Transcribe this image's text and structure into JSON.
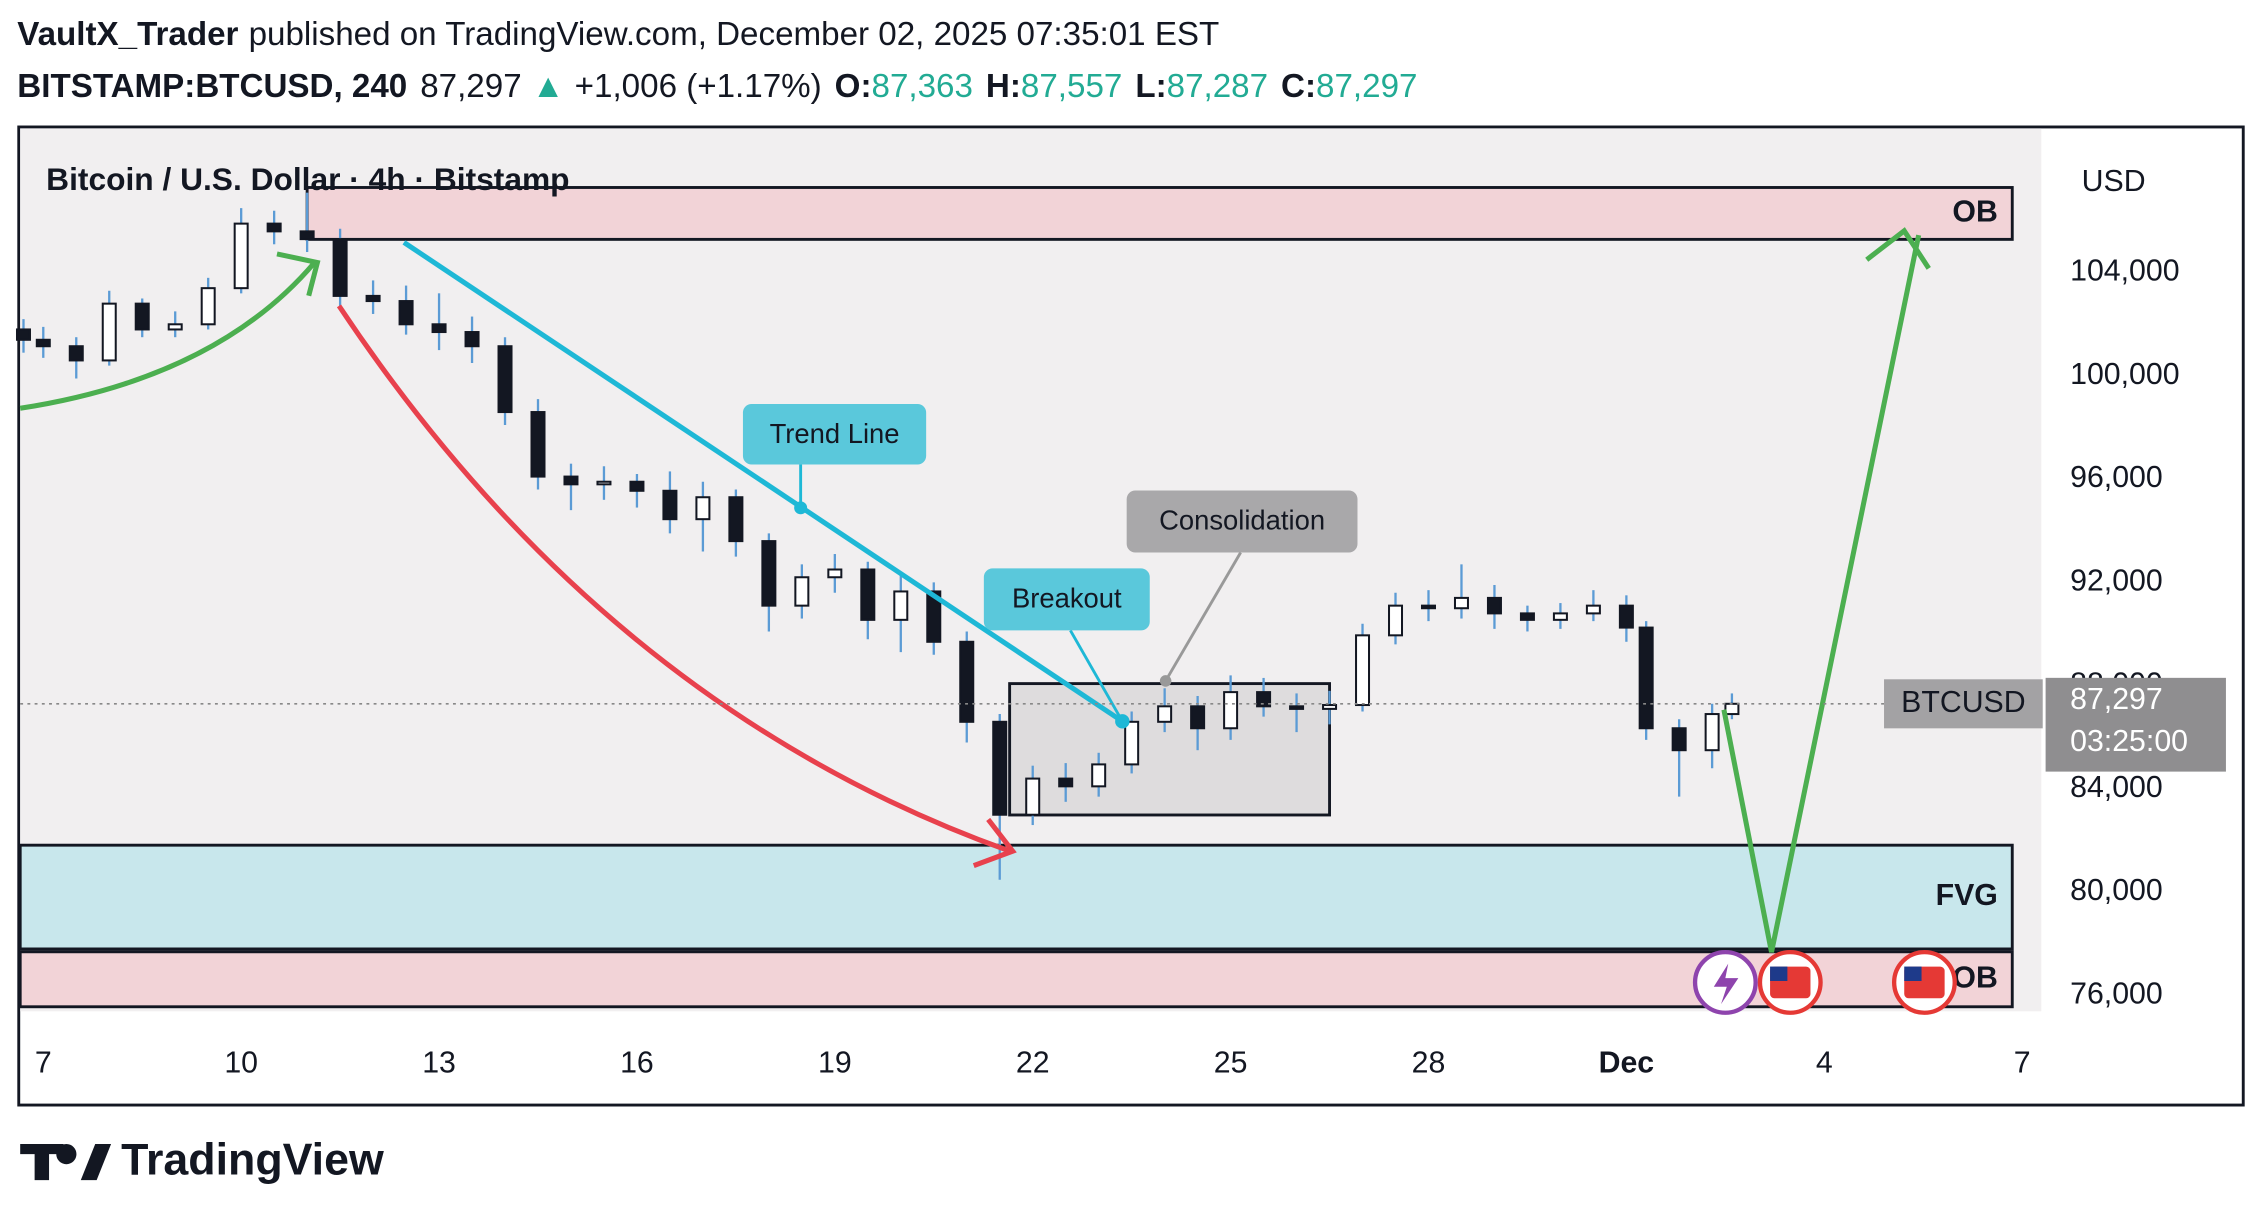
{
  "header": {
    "author": "VaultX_Trader",
    "published": "published on TradingView.com, December 02, 2025 07:35:01 EST",
    "symbol": "BITSTAMP:BTCUSD, 240",
    "last": "87,297",
    "arrow": "▲",
    "change": "+1,006 (+1.17%)",
    "open_key": "O:",
    "open": "87,363",
    "high_key": "H:",
    "high": "87,557",
    "low_key": "L:",
    "low": "87,287",
    "close_key": "C:",
    "close": "87,297"
  },
  "chart_data": {
    "type": "candlestick",
    "title": "Bitcoin / U.S. Dollar · 4h · Bitstamp",
    "currency": "USD",
    "xlim": [
      -0.35,
      30.29
    ],
    "xticks": [
      {
        "value": 0,
        "label": "7"
      },
      {
        "value": 3,
        "label": "10"
      },
      {
        "value": 6,
        "label": "13"
      },
      {
        "value": 9,
        "label": "16"
      },
      {
        "value": 12,
        "label": "19"
      },
      {
        "value": 15,
        "label": "22"
      },
      {
        "value": 18,
        "label": "25"
      },
      {
        "value": 21,
        "label": "28"
      },
      {
        "value": 24,
        "label": "Dec"
      },
      {
        "value": 27,
        "label": "4"
      },
      {
        "value": 30,
        "label": "7"
      }
    ],
    "ylim": [
      75441,
      109421
    ],
    "yticks": [
      {
        "value": 76000,
        "label": "76,000"
      },
      {
        "value": 80000,
        "label": "80,000"
      },
      {
        "value": 84000,
        "label": "84,000"
      },
      {
        "value": 88000,
        "label": "88,000"
      },
      {
        "value": 92000,
        "label": "92,000"
      },
      {
        "value": 96000,
        "label": "96,000"
      },
      {
        "value": 100000,
        "label": "100,000"
      },
      {
        "value": 104000,
        "label": "104,000"
      }
    ],
    "x": [
      -0.3,
      0,
      0.5,
      1,
      1.5,
      2,
      2.5,
      3,
      3.5,
      4,
      4.5,
      5,
      5.5,
      6,
      6.5,
      7,
      7.5,
      8,
      8.5,
      9,
      9.5,
      10,
      10.5,
      11,
      11.5,
      12,
      12.5,
      13,
      13.5,
      14,
      14.5,
      15,
      15.5,
      16,
      16.5,
      17,
      17.5,
      18,
      18.5,
      19,
      19.5,
      20,
      20.5,
      21,
      21.5,
      22,
      22.5,
      23,
      23.5,
      24,
      24.3,
      24.8,
      25.3,
      25.6
    ],
    "open": [
      101800,
      101400,
      101150,
      100600,
      102800,
      101800,
      102000,
      103400,
      105900,
      105600,
      105300,
      103100,
      102900,
      102000,
      101700,
      101150,
      98600,
      96100,
      95800,
      95900,
      95550,
      94450,
      95300,
      93600,
      91100,
      92200,
      92500,
      90550,
      91650,
      89700,
      86600,
      83000,
      84400,
      84100,
      84950,
      86600,
      87200,
      86350,
      87750,
      87200,
      87100,
      87250,
      89950,
      91100,
      91000,
      91400,
      90800,
      90550,
      90800,
      91100,
      90250,
      86350,
      85500,
      86900
    ],
    "high": [
      102200,
      101900,
      101500,
      103300,
      103000,
      102500,
      103800,
      106500,
      106400,
      107100,
      105700,
      103700,
      103500,
      103200,
      102300,
      101500,
      99100,
      96600,
      96500,
      96200,
      96300,
      95900,
      95600,
      93900,
      92700,
      93100,
      92800,
      92300,
      92000,
      90100,
      86900,
      84900,
      85000,
      85400,
      87000,
      87900,
      87600,
      88400,
      88300,
      87700,
      87800,
      90400,
      91600,
      91700,
      92700,
      91900,
      91100,
      91200,
      91700,
      91500,
      90500,
      86700,
      87300,
      87700
    ],
    "low": [
      100900,
      100700,
      99900,
      100400,
      101500,
      101500,
      101800,
      103200,
      105100,
      104800,
      102700,
      102400,
      101600,
      101000,
      100500,
      98100,
      95600,
      94800,
      95200,
      94900,
      93900,
      93200,
      93000,
      90100,
      90600,
      91600,
      89800,
      89300,
      89200,
      85800,
      80480,
      82600,
      83500,
      83700,
      84600,
      86200,
      85500,
      85900,
      86800,
      86200,
      86500,
      87000,
      89600,
      90500,
      90600,
      90200,
      90100,
      90200,
      90500,
      89700,
      85900,
      83700,
      84800,
      86700
    ],
    "close": [
      101400,
      101150,
      100600,
      102800,
      101800,
      102000,
      103400,
      105900,
      105600,
      105300,
      103100,
      102900,
      102000,
      101700,
      101150,
      98600,
      96100,
      95800,
      95900,
      95550,
      94450,
      95300,
      93600,
      91100,
      92200,
      92500,
      90550,
      91650,
      89700,
      86600,
      83000,
      84400,
      84100,
      84950,
      86600,
      87200,
      86350,
      87750,
      87200,
      87100,
      87250,
      89950,
      91100,
      91000,
      91400,
      90800,
      90550,
      90800,
      91100,
      90250,
      86350,
      85500,
      86900,
      87297
    ],
    "up_color": "#ffffff",
    "down_color": "#131722",
    "wick_color": "#5b9bd5",
    "price_label": {
      "value": 87297,
      "label": "87,297",
      "symbol": "BTCUSD",
      "countdown": "03:25:00"
    },
    "zones": [
      {
        "label": "OB",
        "top": 107300,
        "bottom": 105290,
        "x0": 4.0,
        "x1": 29.85,
        "color": "#f2d3d7"
      },
      {
        "label": "FVG",
        "top": 81820,
        "bottom": 77800,
        "x0": -0.35,
        "x1": 29.85,
        "color": "#c8e7ec"
      },
      {
        "label": "OB",
        "top": 77690,
        "bottom": 75560,
        "x0": -0.35,
        "x1": 29.85,
        "color": "#f2d3d7"
      },
      {
        "top": 88080,
        "bottom": 82990,
        "x0": 14.65,
        "x1": 19.5,
        "color": "#dedcdd"
      }
    ]
  },
  "annotations": {
    "trend_line": "Trend Line",
    "breakout": "Breakout",
    "consolidation": "Consolidation"
  },
  "footer": {
    "brand": "TradingView"
  }
}
